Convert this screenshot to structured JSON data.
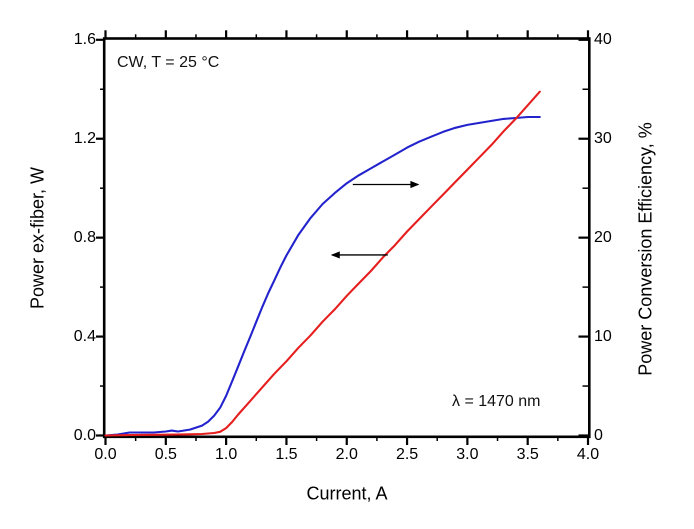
{
  "window": {
    "background": "#ffffff"
  },
  "chart_data": {
    "type": "line",
    "title": "",
    "xlabel": "Current, A",
    "ylabel_left": "Power ex-fiber, W",
    "ylabel_right": "Power Conversion Efficiency, %",
    "xlim": [
      0.0,
      4.0
    ],
    "ylim_left": [
      0.0,
      1.6
    ],
    "ylim_right": [
      0,
      40
    ],
    "grid": false,
    "legend": "none",
    "frame_color": "#000000",
    "x_tick_labels": [
      "0.0",
      "0.5",
      "1.0",
      "1.5",
      "2.0",
      "2.5",
      "3.0",
      "3.5",
      "4.0"
    ],
    "y_left_tick_labels": [
      "0.0",
      "0.4",
      "0.8",
      "1.2",
      "1.6"
    ],
    "y_right_tick_labels": [
      "0",
      "10",
      "20",
      "30",
      "40"
    ],
    "x_minor_ticks": [
      0.25,
      0.75,
      1.25,
      1.75,
      2.25,
      2.75,
      3.25,
      3.75
    ],
    "y_left_minor_ticks": [
      0.2,
      0.6,
      1.0,
      1.4
    ],
    "y_right_minor_ticks": [
      5,
      15,
      25,
      35
    ],
    "series": [
      {
        "name": "power-conversion-efficiency",
        "label": "Power Conversion Efficiency, %",
        "axis": "right",
        "color": "#2323cd",
        "points": [
          [
            0.0,
            0.0
          ],
          [
            0.1,
            0.1
          ],
          [
            0.2,
            0.3
          ],
          [
            0.3,
            0.3
          ],
          [
            0.4,
            0.3
          ],
          [
            0.5,
            0.4
          ],
          [
            0.55,
            0.5
          ],
          [
            0.6,
            0.4
          ],
          [
            0.7,
            0.6
          ],
          [
            0.8,
            1.0
          ],
          [
            0.85,
            1.4
          ],
          [
            0.9,
            2.0
          ],
          [
            0.95,
            2.8
          ],
          [
            1.0,
            4.0
          ],
          [
            1.05,
            5.5
          ],
          [
            1.1,
            7.0
          ],
          [
            1.15,
            8.5
          ],
          [
            1.2,
            10.0
          ],
          [
            1.25,
            11.5
          ],
          [
            1.3,
            13.0
          ],
          [
            1.35,
            14.4
          ],
          [
            1.4,
            15.7
          ],
          [
            1.45,
            17.0
          ],
          [
            1.5,
            18.2
          ],
          [
            1.6,
            20.3
          ],
          [
            1.7,
            22.0
          ],
          [
            1.8,
            23.4
          ],
          [
            1.9,
            24.5
          ],
          [
            2.0,
            25.5
          ],
          [
            2.1,
            26.3
          ],
          [
            2.2,
            27.0
          ],
          [
            2.3,
            27.7
          ],
          [
            2.4,
            28.4
          ],
          [
            2.5,
            29.1
          ],
          [
            2.6,
            29.7
          ],
          [
            2.7,
            30.2
          ],
          [
            2.8,
            30.7
          ],
          [
            2.9,
            31.1
          ],
          [
            3.0,
            31.4
          ],
          [
            3.1,
            31.6
          ],
          [
            3.2,
            31.8
          ],
          [
            3.3,
            32.0
          ],
          [
            3.4,
            32.1
          ],
          [
            3.5,
            32.2
          ],
          [
            3.6,
            32.2
          ]
        ]
      },
      {
        "name": "power-ex-fiber",
        "label": "Power ex-fiber, W",
        "axis": "left",
        "color": "#e61e1e",
        "points": [
          [
            0.0,
            0.0
          ],
          [
            0.2,
            0.002
          ],
          [
            0.4,
            0.003
          ],
          [
            0.6,
            0.004
          ],
          [
            0.7,
            0.005
          ],
          [
            0.8,
            0.006
          ],
          [
            0.9,
            0.01
          ],
          [
            0.95,
            0.015
          ],
          [
            1.0,
            0.03
          ],
          [
            1.05,
            0.055
          ],
          [
            1.1,
            0.085
          ],
          [
            1.2,
            0.14
          ],
          [
            1.3,
            0.195
          ],
          [
            1.4,
            0.25
          ],
          [
            1.5,
            0.3
          ],
          [
            1.6,
            0.355
          ],
          [
            1.7,
            0.405
          ],
          [
            1.8,
            0.46
          ],
          [
            1.9,
            0.51
          ],
          [
            2.0,
            0.565
          ],
          [
            2.1,
            0.615
          ],
          [
            2.2,
            0.665
          ],
          [
            2.3,
            0.72
          ],
          [
            2.4,
            0.77
          ],
          [
            2.5,
            0.825
          ],
          [
            2.6,
            0.875
          ],
          [
            2.7,
            0.925
          ],
          [
            2.8,
            0.975
          ],
          [
            2.9,
            1.025
          ],
          [
            3.0,
            1.075
          ],
          [
            3.1,
            1.125
          ],
          [
            3.2,
            1.175
          ],
          [
            3.3,
            1.23
          ],
          [
            3.4,
            1.28
          ],
          [
            3.5,
            1.335
          ],
          [
            3.6,
            1.39
          ]
        ]
      }
    ],
    "annotations": {
      "condition_label": "CW, T = 25 °C",
      "wavelength_label": "λ = 1470 nm",
      "arrows": [
        {
          "direction": "right",
          "meaning": "efficiency-curve-reads-right-axis",
          "x_from": 2.05,
          "x_to": 2.59,
          "y_left_units": 1.015
        },
        {
          "direction": "left",
          "meaning": "power-curve-reads-left-axis",
          "x_from": 2.34,
          "x_to": 1.88,
          "y_left_units": 0.73
        }
      ]
    }
  }
}
